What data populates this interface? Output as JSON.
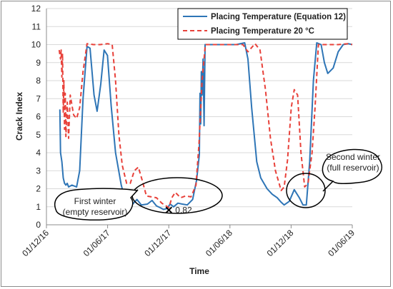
{
  "chart_data": {
    "type": "line",
    "xlabel": "Time",
    "ylabel": "Crack Index",
    "ylim": [
      0,
      12
    ],
    "yticks": [
      "0",
      "1",
      "2",
      "3",
      "4",
      "5",
      "6",
      "7",
      "8",
      "9",
      "10",
      "11",
      "12"
    ],
    "xticks": [
      "01/12/16",
      "01/06/17",
      "01/12/17",
      "01/06/18",
      "01/12/18",
      "01/06/19"
    ],
    "x_domain": [
      "2016-12-01",
      "2019-06-01"
    ],
    "grid": "horizontal",
    "legend_position": "top-right",
    "series": [
      {
        "name": "Placing Temperature (Equation 12)",
        "color": "#2e75b6",
        "style": "solid",
        "points": [
          [
            "2017-01-10",
            6.4
          ],
          [
            "2017-01-12",
            4.0
          ],
          [
            "2017-01-16",
            3.5
          ],
          [
            "2017-01-20",
            2.6
          ],
          [
            "2017-01-24",
            2.3
          ],
          [
            "2017-01-28",
            2.2
          ],
          [
            "2017-02-01",
            2.3
          ],
          [
            "2017-02-05",
            2.1
          ],
          [
            "2017-02-15",
            2.2
          ],
          [
            "2017-03-01",
            2.1
          ],
          [
            "2017-03-10",
            3.0
          ],
          [
            "2017-03-20",
            7.0
          ],
          [
            "2017-04-01",
            9.9
          ],
          [
            "2017-04-10",
            9.8
          ],
          [
            "2017-04-22",
            7.2
          ],
          [
            "2017-05-01",
            6.3
          ],
          [
            "2017-05-12",
            7.8
          ],
          [
            "2017-05-22",
            9.7
          ],
          [
            "2017-06-01",
            9.4
          ],
          [
            "2017-06-12",
            6.6
          ],
          [
            "2017-06-25",
            4.0
          ],
          [
            "2017-07-12",
            2.2
          ],
          [
            "2017-07-22",
            1.5
          ],
          [
            "2017-08-01",
            1.15
          ],
          [
            "2017-08-15",
            1.15
          ],
          [
            "2017-08-28",
            1.4
          ],
          [
            "2017-09-10",
            1.1
          ],
          [
            "2017-09-28",
            1.15
          ],
          [
            "2017-10-12",
            1.35
          ],
          [
            "2017-10-25",
            1.05
          ],
          [
            "2017-11-05",
            0.95
          ],
          [
            "2017-11-15",
            0.85
          ],
          [
            "2017-11-25",
            0.9
          ],
          [
            "2017-12-05",
            1.15
          ],
          [
            "2017-12-15",
            1.0
          ],
          [
            "2017-12-28",
            1.2
          ],
          [
            "2018-01-10",
            1.15
          ],
          [
            "2018-01-25",
            1.1
          ],
          [
            "2018-02-10",
            1.4
          ],
          [
            "2018-02-22",
            2.5
          ],
          [
            "2018-03-02",
            3.9
          ],
          [
            "2018-03-04",
            7.3
          ],
          [
            "2018-03-06",
            5.6
          ],
          [
            "2018-03-08",
            8.5
          ],
          [
            "2018-03-10",
            7.2
          ],
          [
            "2018-03-13",
            9.2
          ],
          [
            "2018-03-16",
            5.5
          ],
          [
            "2018-03-19",
            10.0
          ],
          [
            "2018-04-15",
            10.0
          ],
          [
            "2018-05-20",
            10.0
          ],
          [
            "2018-06-20",
            10.0
          ],
          [
            "2018-07-15",
            10.1
          ],
          [
            "2018-07-25",
            9.2
          ],
          [
            "2018-08-05",
            6.5
          ],
          [
            "2018-08-20",
            3.5
          ],
          [
            "2018-09-01",
            2.6
          ],
          [
            "2018-09-20",
            2.0
          ],
          [
            "2018-10-05",
            1.7
          ],
          [
            "2018-10-20",
            1.5
          ],
          [
            "2018-11-01",
            1.25
          ],
          [
            "2018-11-10",
            1.1
          ],
          [
            "2018-11-25",
            1.3
          ],
          [
            "2018-12-10",
            1.95
          ],
          [
            "2018-12-25",
            1.5
          ],
          [
            "2019-01-05",
            1.1
          ],
          [
            "2019-01-15",
            1.1
          ],
          [
            "2019-01-25",
            3.5
          ],
          [
            "2019-02-05",
            8.0
          ],
          [
            "2019-02-15",
            10.1
          ],
          [
            "2019-02-28",
            10.0
          ],
          [
            "2019-03-10",
            9.0
          ],
          [
            "2019-03-20",
            8.4
          ],
          [
            "2019-04-05",
            8.7
          ],
          [
            "2019-04-20",
            9.6
          ],
          [
            "2019-05-05",
            10.0
          ],
          [
            "2019-05-20",
            10.05
          ],
          [
            "2019-06-01",
            10.0
          ]
        ]
      },
      {
        "name": "Placing Temperature 20 °C",
        "color": "#e8413a",
        "style": "dashed",
        "points": [
          [
            "2017-01-08",
            9.7
          ],
          [
            "2017-01-12",
            9.2
          ],
          [
            "2017-01-14",
            9.7
          ],
          [
            "2017-01-16",
            8.2
          ],
          [
            "2017-01-18",
            9.5
          ],
          [
            "2017-01-20",
            6.2
          ],
          [
            "2017-01-22",
            8.0
          ],
          [
            "2017-01-24",
            5.3
          ],
          [
            "2017-01-26",
            7.3
          ],
          [
            "2017-01-28",
            4.9
          ],
          [
            "2017-02-01",
            6.8
          ],
          [
            "2017-02-05",
            4.8
          ],
          [
            "2017-02-10",
            7.2
          ],
          [
            "2017-02-20",
            6.1
          ],
          [
            "2017-03-01",
            5.9
          ],
          [
            "2017-03-10",
            6.5
          ],
          [
            "2017-03-20",
            8.5
          ],
          [
            "2017-04-01",
            10.05
          ],
          [
            "2017-04-20",
            10.0
          ],
          [
            "2017-05-10",
            10.0
          ],
          [
            "2017-06-01",
            10.05
          ],
          [
            "2017-06-15",
            10.0
          ],
          [
            "2017-06-25",
            8.0
          ],
          [
            "2017-07-05",
            5.0
          ],
          [
            "2017-07-15",
            3.3
          ],
          [
            "2017-07-28",
            2.3
          ],
          [
            "2017-08-08",
            2.3
          ],
          [
            "2017-08-20",
            3.0
          ],
          [
            "2017-09-01",
            3.2
          ],
          [
            "2017-09-12",
            2.5
          ],
          [
            "2017-09-25",
            1.6
          ],
          [
            "2017-10-10",
            1.55
          ],
          [
            "2017-10-25",
            1.5
          ],
          [
            "2017-11-10",
            1.2
          ],
          [
            "2017-12-01",
            0.95
          ],
          [
            "2017-12-10",
            1.5
          ],
          [
            "2017-12-20",
            1.8
          ],
          [
            "2018-01-05",
            1.5
          ],
          [
            "2018-01-20",
            1.6
          ],
          [
            "2018-02-05",
            1.55
          ],
          [
            "2018-02-20",
            2.2
          ],
          [
            "2018-03-01",
            4.5
          ],
          [
            "2018-03-10",
            8.0
          ],
          [
            "2018-03-20",
            10.0
          ],
          [
            "2018-05-01",
            10.0
          ],
          [
            "2018-06-15",
            10.0
          ],
          [
            "2018-07-10",
            10.0
          ],
          [
            "2018-07-25",
            9.6
          ],
          [
            "2018-08-15",
            10.05
          ],
          [
            "2018-08-30",
            9.7
          ],
          [
            "2018-09-15",
            7.5
          ],
          [
            "2018-09-30",
            4.8
          ],
          [
            "2018-10-15",
            3.0
          ],
          [
            "2018-11-01",
            1.9
          ],
          [
            "2018-11-10",
            2.1
          ],
          [
            "2018-11-20",
            3.6
          ],
          [
            "2018-12-01",
            6.5
          ],
          [
            "2018-12-10",
            7.5
          ],
          [
            "2018-12-20",
            7.2
          ],
          [
            "2018-12-30",
            4.0
          ],
          [
            "2019-01-10",
            2.1
          ],
          [
            "2019-01-20",
            2.3
          ],
          [
            "2019-02-01",
            4.0
          ],
          [
            "2019-02-10",
            6.5
          ],
          [
            "2019-02-20",
            10.0
          ],
          [
            "2019-03-20",
            10.0
          ],
          [
            "2019-04-20",
            10.0
          ],
          [
            "2019-05-20",
            10.05
          ],
          [
            "2019-06-01",
            10.0
          ]
        ]
      }
    ],
    "marker": {
      "x": "2017-12-01",
      "y": 0.82,
      "label": "0.82",
      "symbol": "x"
    },
    "annotations": [
      {
        "lines": [
          "First winter",
          "(empty reservoir)"
        ]
      },
      {
        "lines": [
          "Second winter",
          "(full reservoir)"
        ]
      }
    ]
  }
}
